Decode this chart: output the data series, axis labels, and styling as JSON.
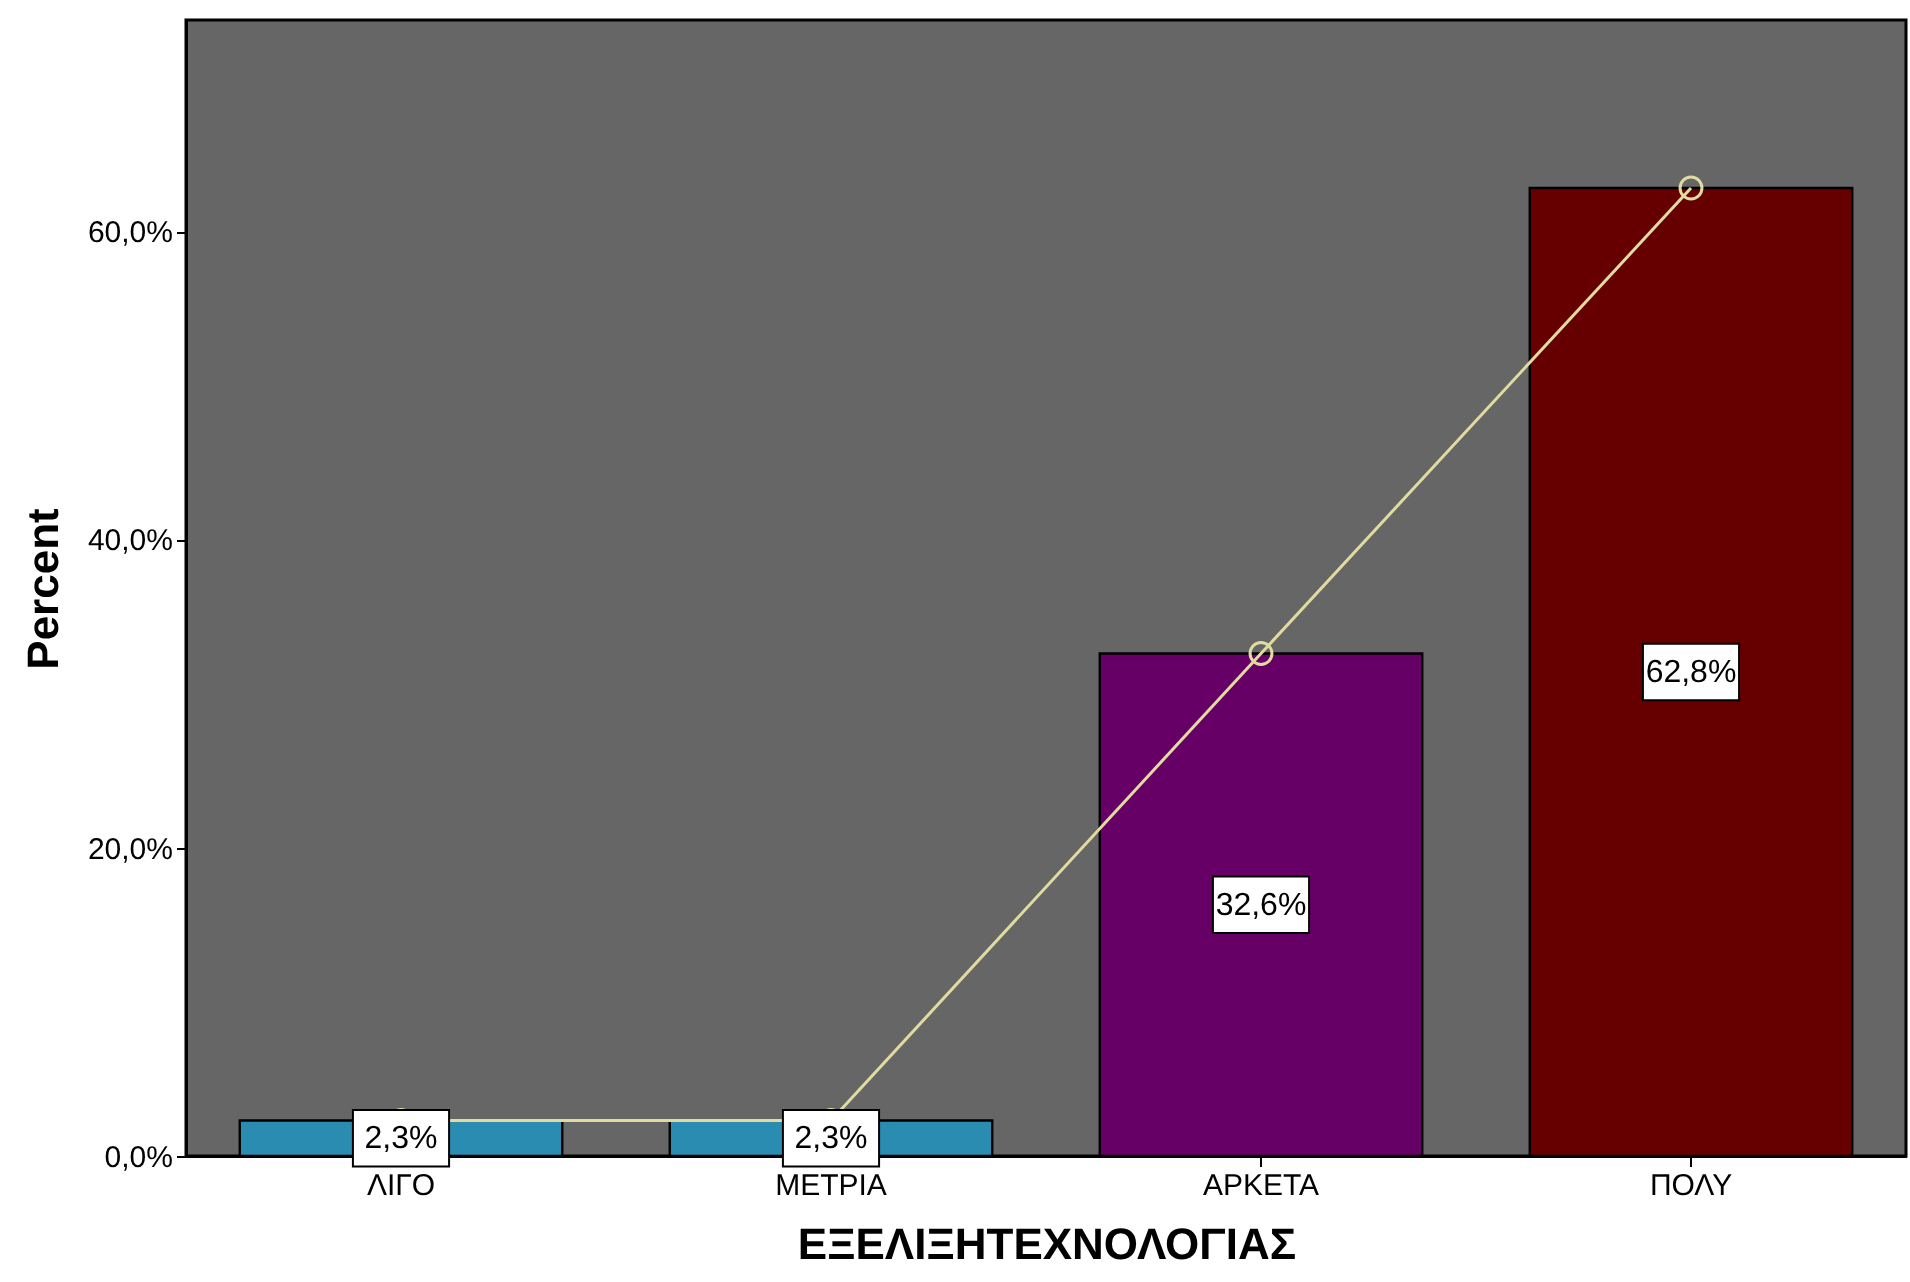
{
  "chart_data": {
    "type": "bar",
    "xlabel": "ΕΞΕΛΙΞΗΤΕΧΝΟΛΟΓΙΑΣ",
    "ylabel": "Percent",
    "categories": [
      "ΛΙΓΟ",
      "ΜΕΤΡΙΑ",
      "ΑΡΚΕΤΑ",
      "ΠΟΛΥ"
    ],
    "ylim": [
      0,
      73.7
    ],
    "yticks": [
      {
        "value": 0,
        "label": "0,0%"
      },
      {
        "value": 20,
        "label": "20,0%"
      },
      {
        "value": 40,
        "label": "40,0%"
      },
      {
        "value": 60,
        "label": "60,0%"
      }
    ],
    "grid": false,
    "series": [
      {
        "colors": [
          "#2a8cb0",
          "#2a8cb0",
          "#660066",
          "#660000"
        ],
        "values": [
          2.3,
          2.3,
          32.6,
          62.8
        ],
        "value_labels": [
          "2,3%",
          "2,3%",
          "32,6%",
          "62,8%"
        ]
      },
      {
        "type": "line",
        "color": "#e0dca0",
        "marker": "circle",
        "line_style": "solid",
        "values": [
          2.3,
          2.3,
          32.6,
          62.8
        ]
      }
    ]
  }
}
